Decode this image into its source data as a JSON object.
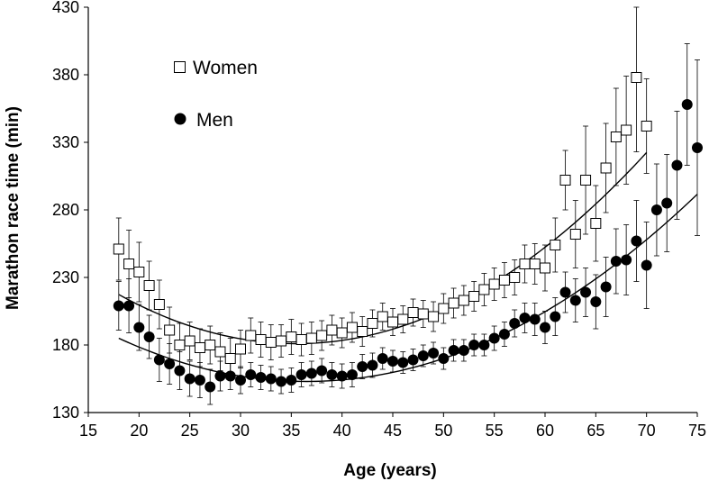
{
  "chart_data": {
    "type": "scatter",
    "xlabel": "Age (years)",
    "ylabel": "Marathon race time (min)",
    "xlim": [
      15,
      75
    ],
    "ylim": [
      130,
      430
    ],
    "xticks": [
      "15",
      "20",
      "25",
      "30",
      "35",
      "40",
      "45",
      "50",
      "55",
      "60",
      "65",
      "70",
      "75"
    ],
    "yticks": [
      "130",
      "180",
      "230",
      "280",
      "330",
      "380",
      "430"
    ],
    "grid": false,
    "legend_position": "top-left",
    "series": [
      {
        "name": "Women",
        "marker": "open-square",
        "points": [
          {
            "x": 18,
            "y": 251,
            "err": 23
          },
          {
            "x": 19,
            "y": 240,
            "err": 25
          },
          {
            "x": 20,
            "y": 234,
            "err": 22
          },
          {
            "x": 21,
            "y": 224,
            "err": 18
          },
          {
            "x": 22,
            "y": 210,
            "err": 18
          },
          {
            "x": 23,
            "y": 191,
            "err": 17
          },
          {
            "x": 24,
            "y": 180,
            "err": 16
          },
          {
            "x": 25,
            "y": 183,
            "err": 14
          },
          {
            "x": 26,
            "y": 178,
            "err": 14
          },
          {
            "x": 27,
            "y": 180,
            "err": 14
          },
          {
            "x": 28,
            "y": 175,
            "err": 14
          },
          {
            "x": 29,
            "y": 170,
            "err": 15
          },
          {
            "x": 30,
            "y": 177,
            "err": 14
          },
          {
            "x": 31,
            "y": 187,
            "err": 13
          },
          {
            "x": 32,
            "y": 184,
            "err": 13
          },
          {
            "x": 33,
            "y": 182,
            "err": 13
          },
          {
            "x": 34,
            "y": 183,
            "err": 12
          },
          {
            "x": 35,
            "y": 186,
            "err": 13
          },
          {
            "x": 36,
            "y": 184,
            "err": 12
          },
          {
            "x": 37,
            "y": 185,
            "err": 12
          },
          {
            "x": 38,
            "y": 187,
            "err": 11
          },
          {
            "x": 39,
            "y": 191,
            "err": 11
          },
          {
            "x": 40,
            "y": 189,
            "err": 11
          },
          {
            "x": 41,
            "y": 193,
            "err": 11
          },
          {
            "x": 42,
            "y": 190,
            "err": 11
          },
          {
            "x": 43,
            "y": 196,
            "err": 10
          },
          {
            "x": 44,
            "y": 201,
            "err": 10
          },
          {
            "x": 45,
            "y": 197,
            "err": 10
          },
          {
            "x": 46,
            "y": 199,
            "err": 10
          },
          {
            "x": 47,
            "y": 204,
            "err": 10
          },
          {
            "x": 48,
            "y": 203,
            "err": 10
          },
          {
            "x": 49,
            "y": 201,
            "err": 11
          },
          {
            "x": 50,
            "y": 207,
            "err": 11
          },
          {
            "x": 51,
            "y": 211,
            "err": 11
          },
          {
            "x": 52,
            "y": 213,
            "err": 11
          },
          {
            "x": 53,
            "y": 216,
            "err": 11
          },
          {
            "x": 54,
            "y": 221,
            "err": 12
          },
          {
            "x": 55,
            "y": 225,
            "err": 12
          },
          {
            "x": 56,
            "y": 228,
            "err": 13
          },
          {
            "x": 57,
            "y": 230,
            "err": 13
          },
          {
            "x": 58,
            "y": 240,
            "err": 14
          },
          {
            "x": 59,
            "y": 240,
            "err": 15
          },
          {
            "x": 60,
            "y": 237,
            "err": 17
          },
          {
            "x": 61,
            "y": 254,
            "err": 20
          },
          {
            "x": 62,
            "y": 302,
            "err": 22
          },
          {
            "x": 63,
            "y": 262,
            "err": 25
          },
          {
            "x": 64,
            "y": 302,
            "err": 40
          },
          {
            "x": 65,
            "y": 270,
            "err": 28
          },
          {
            "x": 66,
            "y": 311,
            "err": 33
          },
          {
            "x": 67,
            "y": 334,
            "err": 36
          },
          {
            "x": 68,
            "y": 339,
            "err": 40
          },
          {
            "x": 69,
            "y": 378,
            "err": 55
          },
          {
            "x": 70,
            "y": 342,
            "err": 35
          }
        ]
      },
      {
        "name": "Men",
        "marker": "filled-circle",
        "points": [
          {
            "x": 18,
            "y": 209,
            "err": 18
          },
          {
            "x": 19,
            "y": 209,
            "err": 20
          },
          {
            "x": 20,
            "y": 193,
            "err": 17
          },
          {
            "x": 21,
            "y": 186,
            "err": 16
          },
          {
            "x": 22,
            "y": 169,
            "err": 16
          },
          {
            "x": 23,
            "y": 166,
            "err": 15
          },
          {
            "x": 24,
            "y": 161,
            "err": 14
          },
          {
            "x": 25,
            "y": 155,
            "err": 13
          },
          {
            "x": 26,
            "y": 154,
            "err": 13
          },
          {
            "x": 27,
            "y": 149,
            "err": 13
          },
          {
            "x": 28,
            "y": 157,
            "err": 11
          },
          {
            "x": 29,
            "y": 157,
            "err": 10
          },
          {
            "x": 30,
            "y": 154,
            "err": 10
          },
          {
            "x": 31,
            "y": 158,
            "err": 9
          },
          {
            "x": 32,
            "y": 156,
            "err": 9
          },
          {
            "x": 33,
            "y": 155,
            "err": 9
          },
          {
            "x": 34,
            "y": 153,
            "err": 9
          },
          {
            "x": 35,
            "y": 154,
            "err": 9
          },
          {
            "x": 36,
            "y": 158,
            "err": 9
          },
          {
            "x": 37,
            "y": 159,
            "err": 9
          },
          {
            "x": 38,
            "y": 161,
            "err": 9
          },
          {
            "x": 39,
            "y": 158,
            "err": 9
          },
          {
            "x": 40,
            "y": 157,
            "err": 9
          },
          {
            "x": 41,
            "y": 158,
            "err": 9
          },
          {
            "x": 42,
            "y": 164,
            "err": 9
          },
          {
            "x": 43,
            "y": 165,
            "err": 9
          },
          {
            "x": 44,
            "y": 170,
            "err": 8
          },
          {
            "x": 45,
            "y": 168,
            "err": 8
          },
          {
            "x": 46,
            "y": 167,
            "err": 8
          },
          {
            "x": 47,
            "y": 169,
            "err": 8
          },
          {
            "x": 48,
            "y": 172,
            "err": 8
          },
          {
            "x": 49,
            "y": 174,
            "err": 8
          },
          {
            "x": 50,
            "y": 170,
            "err": 8
          },
          {
            "x": 51,
            "y": 176,
            "err": 8
          },
          {
            "x": 52,
            "y": 176,
            "err": 8
          },
          {
            "x": 53,
            "y": 180,
            "err": 8
          },
          {
            "x": 54,
            "y": 180,
            "err": 8
          },
          {
            "x": 55,
            "y": 185,
            "err": 9
          },
          {
            "x": 56,
            "y": 188,
            "err": 9
          },
          {
            "x": 57,
            "y": 196,
            "err": 10
          },
          {
            "x": 58,
            "y": 200,
            "err": 11
          },
          {
            "x": 59,
            "y": 199,
            "err": 12
          },
          {
            "x": 60,
            "y": 193,
            "err": 12
          },
          {
            "x": 61,
            "y": 201,
            "err": 14
          },
          {
            "x": 62,
            "y": 219,
            "err": 15
          },
          {
            "x": 63,
            "y": 213,
            "err": 16
          },
          {
            "x": 64,
            "y": 219,
            "err": 18
          },
          {
            "x": 65,
            "y": 212,
            "err": 20
          },
          {
            "x": 66,
            "y": 223,
            "err": 22
          },
          {
            "x": 67,
            "y": 242,
            "err": 24
          },
          {
            "x": 68,
            "y": 243,
            "err": 26
          },
          {
            "x": 69,
            "y": 257,
            "err": 30
          },
          {
            "x": 70,
            "y": 239,
            "err": 32
          },
          {
            "x": 71,
            "y": 280,
            "err": 34
          },
          {
            "x": 72,
            "y": 285,
            "err": 36
          },
          {
            "x": 73,
            "y": 313,
            "err": 40
          },
          {
            "x": 74,
            "y": 358,
            "err": 45
          },
          {
            "x": 75,
            "y": 326,
            "err": 65
          }
        ]
      }
    ],
    "fit_lines": [
      {
        "series": "Women",
        "type": "quadratic",
        "x_range": [
          18,
          70
        ],
        "vertex": [
          35.5,
          181
        ],
        "a": 0.1188
      },
      {
        "series": "Men",
        "type": "quadratic",
        "x_range": [
          18,
          75
        ],
        "vertex": [
          36.5,
          153
        ],
        "a": 0.0935
      }
    ],
    "colors": {
      "marker": "#000000",
      "fill_open": "#ffffff",
      "axis": "#000000"
    }
  }
}
